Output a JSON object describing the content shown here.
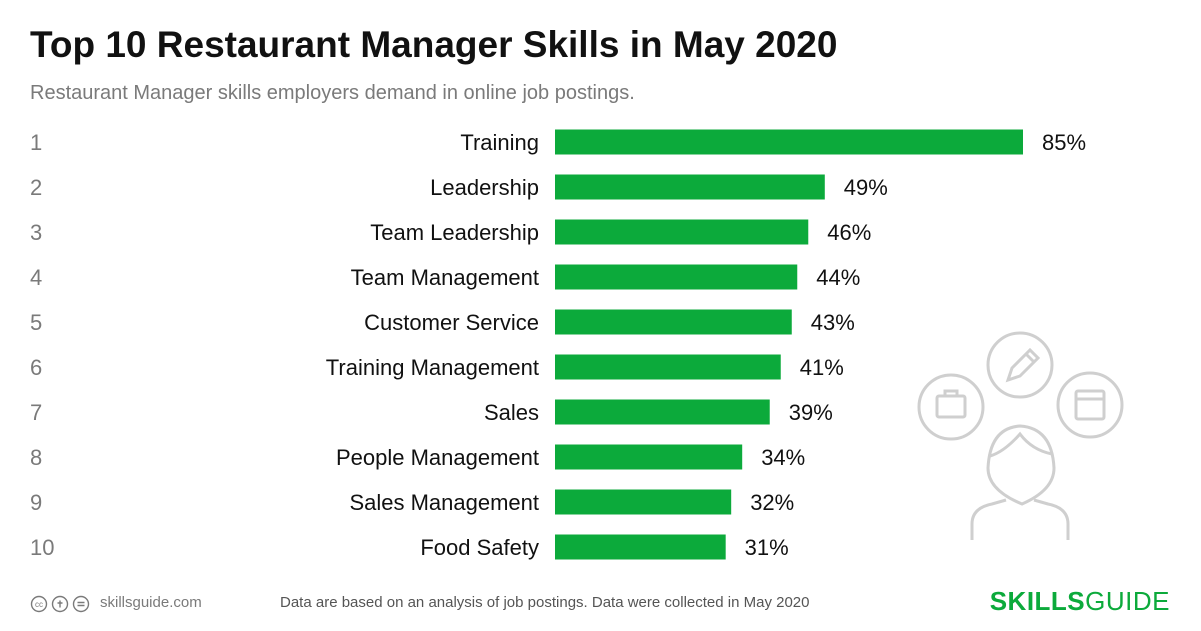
{
  "title": "Top 10 Restaurant Manager Skills in May 2020",
  "subtitle": "Restaurant Manager skills employers demand in online job postings.",
  "colors": {
    "bar": "#0caa3b",
    "brand": "#0caa3b",
    "rank": "#7a7a7a",
    "icon": "#cfcfcf"
  },
  "chart_data": {
    "type": "bar",
    "orientation": "horizontal",
    "title": "Top 10 Restaurant Manager Skills in May 2020",
    "subtitle": "Restaurant Manager skills employers demand in online job postings.",
    "ranks": [
      "1",
      "2",
      "3",
      "4",
      "5",
      "6",
      "7",
      "8",
      "9",
      "10"
    ],
    "categories": [
      "Training",
      "Leadership",
      "Team Leadership",
      "Team Management",
      "Customer Service",
      "Training Management",
      "Sales",
      "People Management",
      "Sales Management",
      "Food Safety"
    ],
    "values": [
      85,
      49,
      46,
      44,
      43,
      41,
      39,
      34,
      32,
      31
    ],
    "value_labels": [
      "85%",
      "49%",
      "46%",
      "44%",
      "43%",
      "41%",
      "39%",
      "34%",
      "32%",
      "31%"
    ],
    "xlim": [
      0,
      100
    ],
    "grid": false,
    "legend": "none"
  },
  "footer": {
    "site": "skillsguide.com",
    "note": "Data are based on an analysis of job postings. Data were collected in May 2020",
    "brand_bold": "SKILLS",
    "brand_regular": "GUIDE"
  },
  "icons": {
    "license": "creative-commons-icon",
    "illustration": "person-with-skill-icons"
  }
}
